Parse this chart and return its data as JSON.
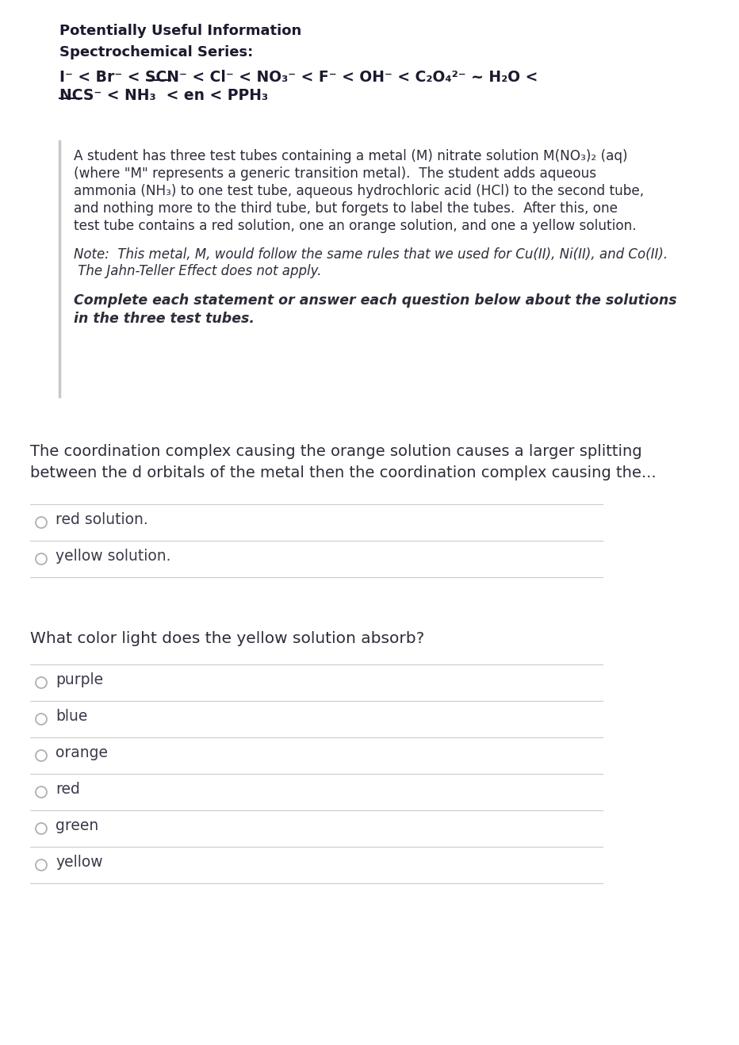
{
  "bg_color": "#ffffff",
  "title1": "Potentially Useful Information",
  "title2": "Spectrochemical Series:",
  "series_line1": "I⁻ < Br⁻ < SCN⁻ < Cl⁻ < NO₃⁻ < F⁻ < OH⁻ < C₂O₄²⁻ ~ H₂O <",
  "series_line2": "NCS⁻ < NH₃  < en < PPH₃",
  "block_text_lines": [
    "A student has three test tubes containing a metal (M) nitrate solution M(NO₃)₂ (aq)",
    "(where \"M\" represents a generic transition metal).  The student adds aqueous",
    "ammonia (NH₃) to one test tube, aqueous hydrochloric acid (HCl) to the second tube,",
    "and nothing more to the third tube, but forgets to label the tubes.  After this, one",
    "test tube contains a red solution, one an orange solution, and one a yellow solution."
  ],
  "note_lines": [
    "Note:  This metal, M, would follow the same rules that we used for Cu(II), Ni(II), and Co(II).",
    " The Jahn-Teller Effect does not apply."
  ],
  "instruction_lines": [
    "Complete each statement or answer each question below about the solutions",
    "in the three test tubes."
  ],
  "q1_text_lines": [
    "The coordination complex causing the orange solution causes a larger splitting",
    "between the d orbitals of the metal then the coordination complex causing the..."
  ],
  "q1_options": [
    "red solution.",
    "yellow solution."
  ],
  "q2_text": "What color light does the yellow solution absorb?",
  "q2_options": [
    "purple",
    "blue",
    "orange",
    "red",
    "green",
    "yellow"
  ],
  "radio_color": "#b0b0b0",
  "line_color": "#cccccc",
  "left_bar_color": "#c8c8c8",
  "dark_text": "#1a1a2e",
  "body_text": "#2d2d3a",
  "option_text": "#3a3a4a"
}
